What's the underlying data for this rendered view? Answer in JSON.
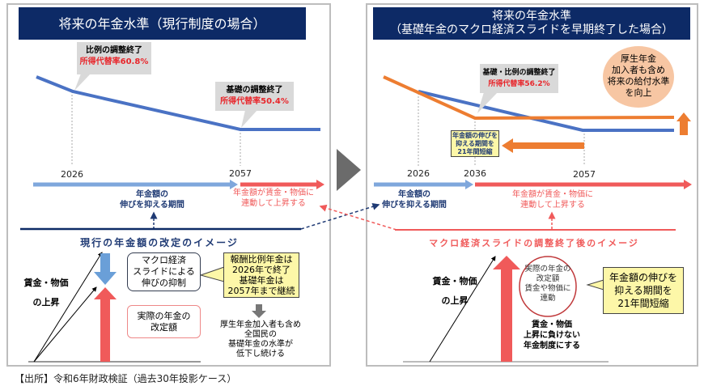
{
  "left": {
    "title": "将来の年金水準（現行制度の場合）",
    "callout1": {
      "line1": "比例の調整終了",
      "line2": "所得代替率60.8%"
    },
    "callout2": {
      "line1": "基礎の調整終了",
      "line2": "所得代替率50.4%"
    },
    "years": [
      "2026",
      "2057"
    ],
    "blue_label": [
      "年金額の",
      "伸びを抑える期間"
    ],
    "red_label": [
      "年金額が賃金・物価に",
      "連動して上昇する"
    ],
    "section_title": "現行の年金額の改定のイメージ",
    "wage_label": [
      "賃金・物価",
      "の上昇"
    ],
    "macro_box": [
      "マクロ経済",
      "スライドによる",
      "伸びの抑制"
    ],
    "yellow_callout": [
      "報酬比例年金は",
      "2026年で終了",
      "基礎年金は",
      "2057年まで継続"
    ],
    "actual_box": [
      "実際の年金の",
      "改定額"
    ],
    "result_text": [
      "厚生年金加入者も含め",
      "全国民の",
      "基礎年金の水準が",
      "低下し続ける"
    ]
  },
  "right": {
    "title": [
      "将来の年金水準",
      "（基礎年金のマクロ経済スライドを早期終了した場合）"
    ],
    "callout": {
      "line1": "基礎・比例の調整終了",
      "line2": "所得代替率56.2%"
    },
    "circle": [
      "厚生年金",
      "加入者も含め",
      "将来の給付水準",
      "を向上"
    ],
    "shorten_box": [
      "年金額の伸びを",
      "抑える期間を",
      "21年間短縮"
    ],
    "years": [
      "2026",
      "2036",
      "2057"
    ],
    "blue_label": [
      "年金額の",
      "伸びを抑える期間"
    ],
    "red_label": [
      "年金額が賃金・物価に",
      "連動して上昇する"
    ],
    "section_title": "マクロ経済スライドの調整終了後のイメージ",
    "wage_label": [
      "賃金・物価",
      "の上昇"
    ],
    "actual_circle": [
      "実際の年金の",
      "改定額",
      "賃金や物価に",
      "連動"
    ],
    "yellow_callout": [
      "年金額の伸びを",
      "抑える期間を",
      "21年間短縮"
    ],
    "bold_text": [
      "賃金・物価",
      "上昇に負けない",
      "年金制度にする"
    ]
  },
  "source": "【出所】令和6年財政検証（過去30年投影ケース）",
  "colors": {
    "navy": "#0d2a66",
    "blue_line": "#4a72c4",
    "orange_line": "#ed7d31",
    "red": "#f05a5a",
    "light_blue": "#7fa7dc",
    "yellow": "#fdf7a8",
    "peach": "#f7c6a3"
  }
}
